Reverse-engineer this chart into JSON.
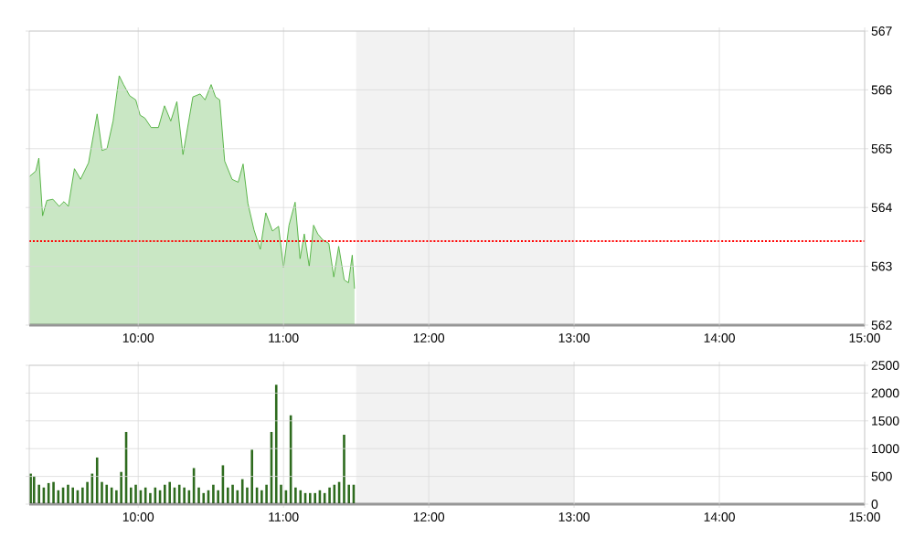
{
  "chart_data": [
    {
      "type": "area",
      "xlim": [
        9.25,
        15
      ],
      "ylim": [
        562,
        567
      ],
      "xticks": [
        {
          "value": 10,
          "label": "10:00"
        },
        {
          "value": 11,
          "label": "11:00"
        },
        {
          "value": 12,
          "label": "12:00"
        },
        {
          "value": 13,
          "label": "13:00"
        },
        {
          "value": 14,
          "label": "14:00"
        },
        {
          "value": 15,
          "label": "15:00"
        }
      ],
      "yticks": [
        562,
        563,
        564,
        565,
        566,
        567
      ],
      "grid": true,
      "series": [
        {
          "color": "#4caf3a",
          "x": [
            9.253,
            9.295,
            9.316,
            9.342,
            9.371,
            9.413,
            9.456,
            9.489,
            9.519,
            9.561,
            9.603,
            9.658,
            9.717,
            9.751,
            9.785,
            9.827,
            9.869,
            9.899,
            9.941,
            9.983,
            10.013,
            10.046,
            10.089,
            10.139,
            10.181,
            10.224,
            10.266,
            10.308,
            10.376,
            10.426,
            10.46,
            10.502,
            10.532,
            10.561,
            10.595,
            10.646,
            10.688,
            10.722,
            10.755,
            10.797,
            10.84,
            10.878,
            10.924,
            10.966,
            11.0,
            11.038,
            11.08,
            11.114,
            11.143,
            11.177,
            11.207,
            11.236,
            11.27,
            11.312,
            11.346,
            11.38,
            11.418,
            11.447,
            11.473,
            11.489
          ],
          "values": [
            564.53,
            564.62,
            564.84,
            563.86,
            564.12,
            564.14,
            564.02,
            564.1,
            564.02,
            564.66,
            564.48,
            564.76,
            565.59,
            564.97,
            565.0,
            565.47,
            566.24,
            566.09,
            565.9,
            565.83,
            565.57,
            565.52,
            565.36,
            565.36,
            565.73,
            565.47,
            565.8,
            564.9,
            565.88,
            565.93,
            565.83,
            566.09,
            565.88,
            565.83,
            564.79,
            564.48,
            564.43,
            564.74,
            564.07,
            563.62,
            563.29,
            563.91,
            563.6,
            563.68,
            562.98,
            563.7,
            564.09,
            563.13,
            563.55,
            563.0,
            563.7,
            563.55,
            563.45,
            563.39,
            562.82,
            563.34,
            562.77,
            562.72,
            563.19,
            562.62
          ]
        }
      ],
      "ref_lines": [
        {
          "axis": "y",
          "value": 563.43,
          "color": "#ff0000",
          "line_style": "dotted"
        }
      ],
      "bands": [
        {
          "axis": "x",
          "from": 11.5,
          "to": 13,
          "color": "#f2f2f2"
        }
      ]
    },
    {
      "type": "bar",
      "xlim": [
        9.25,
        15
      ],
      "ylim": [
        0,
        2500
      ],
      "xticks": [
        {
          "value": 10,
          "label": "10:00"
        },
        {
          "value": 11,
          "label": "11:00"
        },
        {
          "value": 12,
          "label": "12:00"
        },
        {
          "value": 13,
          "label": "13:00"
        },
        {
          "value": 14,
          "label": "14:00"
        },
        {
          "value": 15,
          "label": "15:00"
        }
      ],
      "yticks": [
        0,
        500,
        1000,
        1500,
        2000,
        2500
      ],
      "grid": true,
      "series": [
        {
          "color": "#2e6b1e",
          "x": [
            9.26,
            9.283,
            9.317,
            9.35,
            9.383,
            9.417,
            9.45,
            9.483,
            9.517,
            9.55,
            9.583,
            9.617,
            9.65,
            9.683,
            9.717,
            9.75,
            9.783,
            9.817,
            9.85,
            9.883,
            9.917,
            9.95,
            9.983,
            10.017,
            10.05,
            10.083,
            10.117,
            10.15,
            10.183,
            10.217,
            10.25,
            10.283,
            10.317,
            10.35,
            10.383,
            10.417,
            10.45,
            10.483,
            10.517,
            10.55,
            10.583,
            10.617,
            10.65,
            10.683,
            10.717,
            10.75,
            10.783,
            10.817,
            10.85,
            10.883,
            10.917,
            10.95,
            10.983,
            11.017,
            11.05,
            11.083,
            11.117,
            11.15,
            11.183,
            11.217,
            11.25,
            11.283,
            11.317,
            11.35,
            11.383,
            11.417,
            11.45,
            11.483
          ],
          "values": [
            550,
            500,
            350,
            300,
            380,
            400,
            250,
            300,
            350,
            300,
            250,
            300,
            400,
            550,
            840,
            400,
            350,
            300,
            250,
            580,
            1300,
            300,
            350,
            250,
            300,
            200,
            300,
            250,
            350,
            400,
            300,
            350,
            300,
            250,
            650,
            300,
            200,
            250,
            350,
            250,
            700,
            300,
            350,
            250,
            450,
            300,
            980,
            300,
            250,
            350,
            1300,
            2150,
            350,
            250,
            1600,
            300,
            250,
            200,
            200,
            200,
            250,
            200,
            300,
            350,
            400,
            1250,
            350,
            350
          ]
        }
      ],
      "bands": [
        {
          "axis": "x",
          "from": 11.5,
          "to": 13,
          "color": "#f2f2f2"
        }
      ]
    }
  ]
}
